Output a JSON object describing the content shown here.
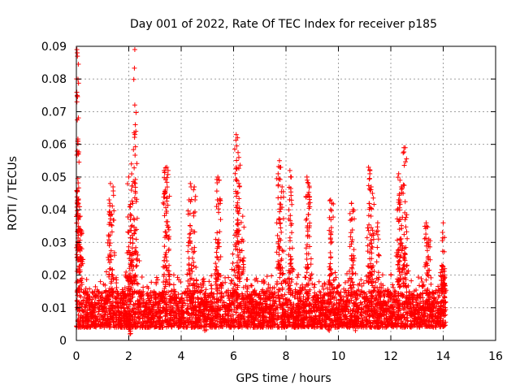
{
  "chart_data": {
    "type": "scatter",
    "title": "Day 001 of 2022, Rate Of TEC Index for receiver p185",
    "xlabel": "GPS time / hours",
    "ylabel": "ROTI / TECUs",
    "xlim": [
      0,
      16
    ],
    "ylim": [
      0,
      0.09
    ],
    "x_ticks": [
      0,
      2,
      4,
      6,
      8,
      10,
      12,
      14,
      16
    ],
    "x_tick_labels": [
      "0",
      "2",
      "4",
      "6",
      "8",
      "10",
      "12",
      "14",
      "16"
    ],
    "y_ticks": [
      0,
      0.01,
      0.02,
      0.03,
      0.04,
      0.05,
      0.06,
      0.07,
      0.08,
      0.09
    ],
    "y_tick_labels": [
      "0",
      "0.01",
      "0.02",
      "0.03",
      "0.04",
      "0.05",
      "0.06",
      "0.07",
      "0.08",
      "0.09"
    ],
    "grid": true,
    "marker": "+",
    "color": "#ff0000",
    "data_x_range": [
      0,
      14.1
    ],
    "typical_band": [
      0.004,
      0.015
    ],
    "series": [
      {
        "name": "ROTI p185",
        "notable_points": [
          {
            "x": 0.02,
            "y": 0.089
          },
          {
            "x": 0.03,
            "y": 0.088
          },
          {
            "x": 0.04,
            "y": 0.087
          },
          {
            "x": 0.03,
            "y": 0.075
          },
          {
            "x": 0.05,
            "y": 0.061
          },
          {
            "x": 0.08,
            "y": 0.042
          },
          {
            "x": 0.15,
            "y": 0.038
          },
          {
            "x": 0.12,
            "y": 0.034
          },
          {
            "x": 0.2,
            "y": 0.033
          },
          {
            "x": 2.23,
            "y": 0.089
          },
          {
            "x": 2.25,
            "y": 0.066
          },
          {
            "x": 2.27,
            "y": 0.064
          },
          {
            "x": 2.1,
            "y": 0.054
          },
          {
            "x": 2.0,
            "y": 0.05
          },
          {
            "x": 2.1,
            "y": 0.046
          },
          {
            "x": 3.35,
            "y": 0.052
          },
          {
            "x": 3.45,
            "y": 0.053
          },
          {
            "x": 3.5,
            "y": 0.052
          },
          {
            "x": 3.4,
            "y": 0.046
          },
          {
            "x": 1.3,
            "y": 0.048
          },
          {
            "x": 1.4,
            "y": 0.047
          },
          {
            "x": 1.25,
            "y": 0.043
          },
          {
            "x": 4.35,
            "y": 0.048
          },
          {
            "x": 4.5,
            "y": 0.047
          },
          {
            "x": 4.3,
            "y": 0.043
          },
          {
            "x": 5.4,
            "y": 0.05
          },
          {
            "x": 5.45,
            "y": 0.049
          },
          {
            "x": 5.35,
            "y": 0.041
          },
          {
            "x": 6.1,
            "y": 0.063
          },
          {
            "x": 6.15,
            "y": 0.062
          },
          {
            "x": 6.2,
            "y": 0.056
          },
          {
            "x": 6.1,
            "y": 0.053
          },
          {
            "x": 6.2,
            "y": 0.048
          },
          {
            "x": 6.35,
            "y": 0.038
          },
          {
            "x": 7.75,
            "y": 0.055
          },
          {
            "x": 7.8,
            "y": 0.053
          },
          {
            "x": 7.7,
            "y": 0.051
          },
          {
            "x": 7.85,
            "y": 0.047
          },
          {
            "x": 8.15,
            "y": 0.052
          },
          {
            "x": 8.2,
            "y": 0.05
          },
          {
            "x": 8.8,
            "y": 0.05
          },
          {
            "x": 8.85,
            "y": 0.048
          },
          {
            "x": 8.9,
            "y": 0.044
          },
          {
            "x": 9.7,
            "y": 0.043
          },
          {
            "x": 9.75,
            "y": 0.042
          },
          {
            "x": 10.5,
            "y": 0.042
          },
          {
            "x": 10.55,
            "y": 0.04
          },
          {
            "x": 11.15,
            "y": 0.053
          },
          {
            "x": 11.2,
            "y": 0.051
          },
          {
            "x": 11.25,
            "y": 0.047
          },
          {
            "x": 11.3,
            "y": 0.045
          },
          {
            "x": 11.5,
            "y": 0.036
          },
          {
            "x": 12.3,
            "y": 0.051
          },
          {
            "x": 12.35,
            "y": 0.049
          },
          {
            "x": 12.4,
            "y": 0.047
          },
          {
            "x": 12.3,
            "y": 0.043
          },
          {
            "x": 12.5,
            "y": 0.059
          },
          {
            "x": 12.55,
            "y": 0.059
          },
          {
            "x": 13.35,
            "y": 0.036
          },
          {
            "x": 13.45,
            "y": 0.031
          },
          {
            "x": 14.0,
            "y": 0.036
          },
          {
            "x": 13.95,
            "y": 0.023
          },
          {
            "x": 14.05,
            "y": 0.02
          },
          {
            "x": 2.05,
            "y": 0.002
          },
          {
            "x": 4.9,
            "y": 0.003
          },
          {
            "x": 9.65,
            "y": 0.003
          },
          {
            "x": 10.65,
            "y": 0.003
          }
        ]
      }
    ]
  }
}
